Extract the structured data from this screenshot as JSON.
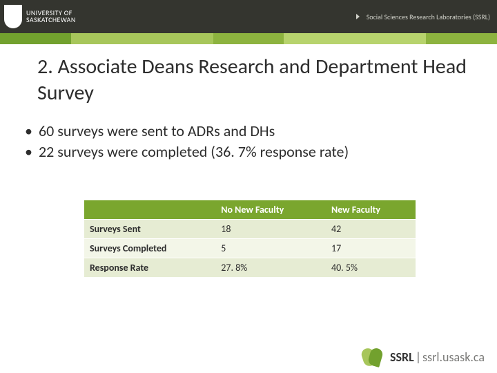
{
  "banner": {
    "university_line1": "UNIVERSITY OF",
    "university_line2": "SASKATCHEWAN",
    "ssrl_label": "Social Sciences Research Laboratories (SSRL)"
  },
  "title": "2. Associate Deans Research and Department Head Survey",
  "bullets": [
    "60 surveys were sent to ADRs and DHs",
    "22 surveys were completed (36. 7% response rate)"
  ],
  "table": {
    "columns": [
      "",
      "No New Faculty",
      "New Faculty"
    ],
    "rows": [
      {
        "label": "Surveys Sent",
        "c1": "18",
        "c2": "42"
      },
      {
        "label": "Surveys Completed",
        "c1": "5",
        "c2": "17"
      },
      {
        "label": "Response Rate",
        "c1": "27. 8%",
        "c2": "40. 5%"
      }
    ],
    "header_bg": "#7aa62e",
    "row_odd_bg": "#e6ecd3",
    "row_even_bg": "#f3f6e8"
  },
  "footer": {
    "brand": "SSRL",
    "url": "ssrl.usask.ca"
  }
}
